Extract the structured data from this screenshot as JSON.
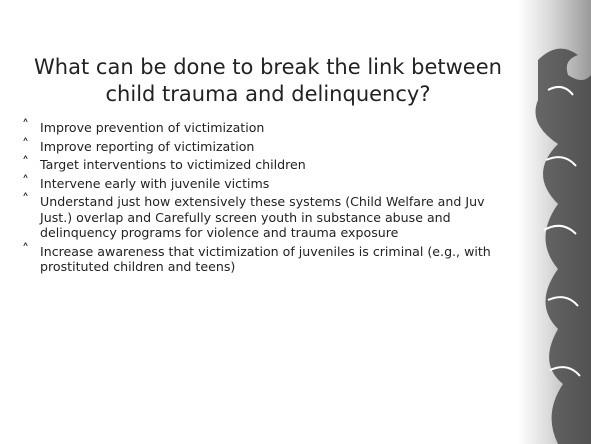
{
  "slide": {
    "title": "What can be done to break the link between child trauma and delinquency?",
    "bullets": [
      "Improve prevention of victimization",
      "Improve reporting of victimization",
      "Target interventions to victimized children",
      "Intervene early with juvenile victims",
      "Understand just how extensively these systems (Child Welfare and Juv Just.) overlap and Carefully screen youth in substance abuse and delinquency programs for violence and trauma exposure",
      "Increase awareness that victimization of juveniles is criminal  (e.g., with prostituted children and teens)"
    ]
  }
}
